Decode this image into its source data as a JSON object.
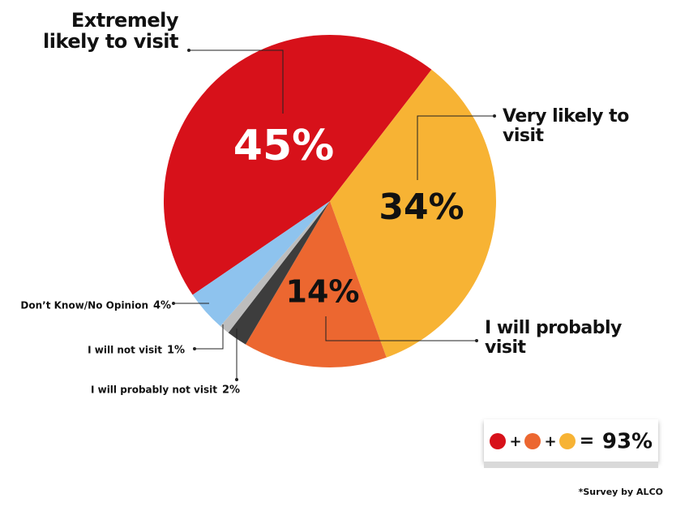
{
  "chart_data": {
    "type": "pie",
    "categories": [
      "Extremely likely to visit",
      "Very likely to visit",
      "I will probably visit",
      "I will probably not visit",
      "I will not visit",
      "Don’t Know/No Opinion"
    ],
    "values": [
      45,
      34,
      14,
      2,
      1,
      4
    ],
    "value_labels": [
      "45%",
      "34%",
      "14%",
      "2%",
      "1%",
      "4%"
    ],
    "colors": [
      "#d7111a",
      "#f7b334",
      "#ec6730",
      "#3d3d3d",
      "#bdbdbd",
      "#8ec3ee"
    ],
    "summary": {
      "plus": "+",
      "equals": "=",
      "label": "93%"
    },
    "footnote": "*Survey by ALCO"
  }
}
